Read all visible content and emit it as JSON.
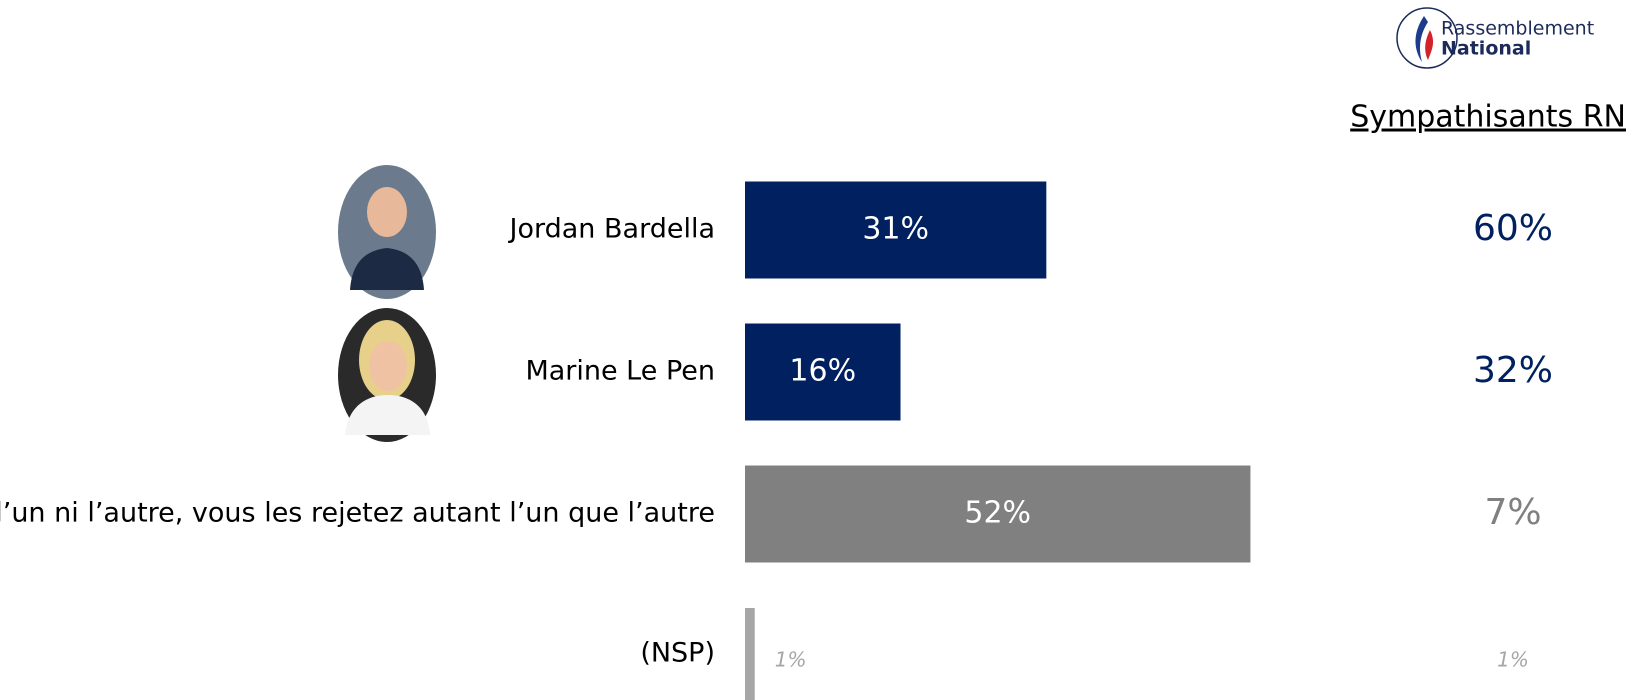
{
  "chart_data": {
    "type": "bar",
    "logo": [
      "Rassemblement",
      "National"
    ],
    "categories": [
      "Jordan Bardella",
      "Marine Le Pen",
      "Ni l’un ni l’autre, vous les rejetez autant l’un que l’autre",
      "(NSP)"
    ],
    "values": [
      31,
      16,
      52,
      1
    ],
    "value_labels": [
      "31%",
      "16%",
      "52%",
      "1%"
    ],
    "colors": [
      "#002060",
      "#002060",
      "#808080",
      "#a6a6a6"
    ],
    "secondary": {
      "title": "Sympathisants RN",
      "values": [
        60,
        32,
        7,
        1
      ],
      "value_labels": [
        "60%",
        "32%",
        "7%",
        "1%"
      ]
    }
  }
}
